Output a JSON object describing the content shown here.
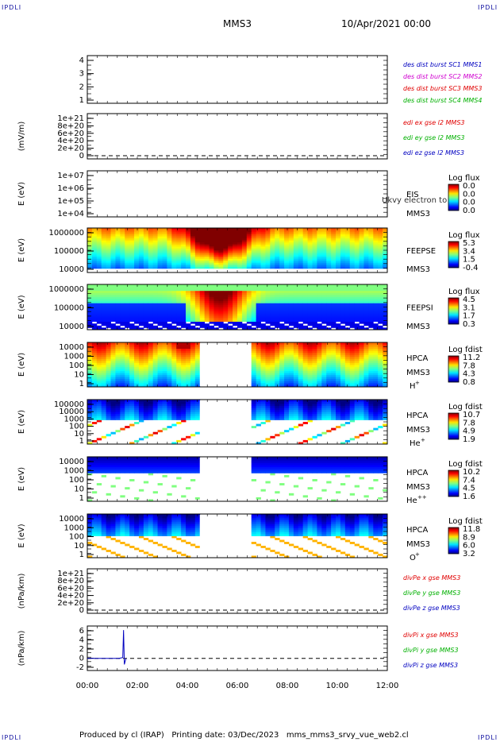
{
  "corner_label": "IPDLI",
  "header": {
    "spacecraft": "MMS3",
    "date": "10/Apr/2021 00:00"
  },
  "footer": {
    "produced_by": "Produced by cl (IRAP)",
    "printing_date": "Printing date: 03/Dec/2023",
    "script": "mms_mms3_srvy_vue_web2.cl"
  },
  "x_axis": {
    "ticks": [
      "00:00",
      "02:00",
      "04:00",
      "06:00",
      "08:00",
      "10:00",
      "12:00"
    ],
    "range_hours": [
      0,
      12
    ]
  },
  "colors": {
    "red": "#e00000",
    "green": "#00b000",
    "blue": "#0000c0",
    "magenta": "#d000d0"
  },
  "panels": [
    {
      "id": "burst",
      "ylabel": "",
      "yticks": [
        "4",
        "3",
        "2",
        "1"
      ],
      "legend": [
        {
          "text": "des dist burst SC1 MMS1",
          "color": "#0000c0"
        },
        {
          "text": "des dist burst SC2 MMS2",
          "color": "#d000d0"
        },
        {
          "text": "des dist burst SC3 MMS3",
          "color": "#e00000"
        },
        {
          "text": "des dist burst SC4 MMS4",
          "color": "#00b000"
        }
      ]
    },
    {
      "id": "edi",
      "ylabel": "(mV/m)",
      "yticks": [
        "1e+21",
        "8e+20",
        "6e+20",
        "4e+20",
        "2e+20",
        "0"
      ],
      "legend": [
        {
          "text": "edi ex gse l2 MMS3",
          "color": "#e00000"
        },
        {
          "text": "edi ey gse l2 MMS3",
          "color": "#00b000"
        },
        {
          "text": "edi ez gse l2 MMS3",
          "color": "#0000c0"
        }
      ]
    },
    {
      "id": "eis",
      "ylabel": "E (eV)",
      "yticks": [
        "1e+07",
        "1e+06",
        "1e+05",
        "1e+04"
      ],
      "labels": [
        "EIS",
        "MMS3"
      ],
      "overlay": "Ukvy electron to",
      "colorbar": {
        "title": "Log flux",
        "ticks": [
          "0.0",
          "0.0",
          "0.0",
          "0.0"
        ]
      }
    },
    {
      "id": "feepse",
      "ylabel": "E (eV)",
      "yticks": [
        "1000000",
        "100000",
        "10000"
      ],
      "labels": [
        "FEEPSE",
        "MMS3"
      ],
      "colorbar": {
        "title": "Log flux",
        "ticks": [
          "5.3",
          "3.4",
          "1.5",
          "-0.4"
        ]
      }
    },
    {
      "id": "feepsi",
      "ylabel": "E (eV)",
      "yticks": [
        "1000000",
        "100000",
        "10000"
      ],
      "labels": [
        "FEEPSI",
        "MMS3"
      ],
      "colorbar": {
        "title": "Log flux",
        "ticks": [
          "4.5",
          "3.1",
          "1.7",
          "0.3"
        ]
      }
    },
    {
      "id": "hpca_h",
      "ylabel": "E (eV)",
      "yticks": [
        "10000",
        "1000",
        "100",
        "10",
        "1"
      ],
      "labels": [
        "HPCA",
        "MMS3"
      ],
      "species": "H",
      "charge": "+",
      "colorbar": {
        "title": "Log fdist",
        "ticks": [
          "11.2",
          "7.8",
          "4.3",
          "0.8"
        ]
      }
    },
    {
      "id": "hpca_he",
      "ylabel": "E (eV)",
      "yticks": [
        "100000",
        "10000",
        "1000",
        "100",
        "10",
        "1"
      ],
      "labels": [
        "HPCA",
        "MMS3"
      ],
      "species": "He",
      "charge": "+",
      "colorbar": {
        "title": "Log fdist",
        "ticks": [
          "10.7",
          "7.8",
          "4.9",
          "1.9"
        ]
      }
    },
    {
      "id": "hpca_hepp",
      "ylabel": "E (eV)",
      "yticks": [
        "10000",
        "1000",
        "100",
        "10",
        "1"
      ],
      "labels": [
        "HPCA",
        "MMS3"
      ],
      "species": "He",
      "charge": "++",
      "colorbar": {
        "title": "Log fdist",
        "ticks": [
          "10.2",
          "7.4",
          "4.5",
          "1.6"
        ]
      }
    },
    {
      "id": "hpca_o",
      "ylabel": "E (eV)",
      "yticks": [
        "10000",
        "1000",
        "100",
        "10",
        "1"
      ],
      "labels": [
        "HPCA",
        "MMS3"
      ],
      "species": "O",
      "charge": "+",
      "colorbar": {
        "title": "Log fdist",
        "ticks": [
          "11.8",
          "8.9",
          "6.0",
          "3.2"
        ]
      }
    },
    {
      "id": "divpe",
      "ylabel": "(nPa/km)",
      "yticks": [
        "1e+21",
        "8e+20",
        "6e+20",
        "4e+20",
        "2e+20",
        "0"
      ],
      "legend": [
        {
          "text": "divPe x gse MMS3",
          "color": "#e00000"
        },
        {
          "text": "divPe y gse MMS3",
          "color": "#00b000"
        },
        {
          "text": "divPe z gse MMS3",
          "color": "#0000c0"
        }
      ]
    },
    {
      "id": "divpi",
      "ylabel": "(nPa/km)",
      "yticks": [
        "6",
        "4",
        "2",
        "0",
        "-2"
      ],
      "legend": [
        {
          "text": "divPi x gse MMS3",
          "color": "#e00000"
        },
        {
          "text": "divPi y gse MMS3",
          "color": "#00b000"
        },
        {
          "text": "divPi z gse MMS3",
          "color": "#0000c0"
        }
      ]
    }
  ],
  "chart_data": {
    "type": "line",
    "x_range_hours": [
      0,
      12
    ],
    "data_gap_hours": [
      4.5,
      6.5
    ],
    "divpi_z_spike": {
      "x_hour": 1.45,
      "y_max": 7,
      "y_min": -1.5
    },
    "divpi_ylim": [
      -3,
      8
    ]
  }
}
